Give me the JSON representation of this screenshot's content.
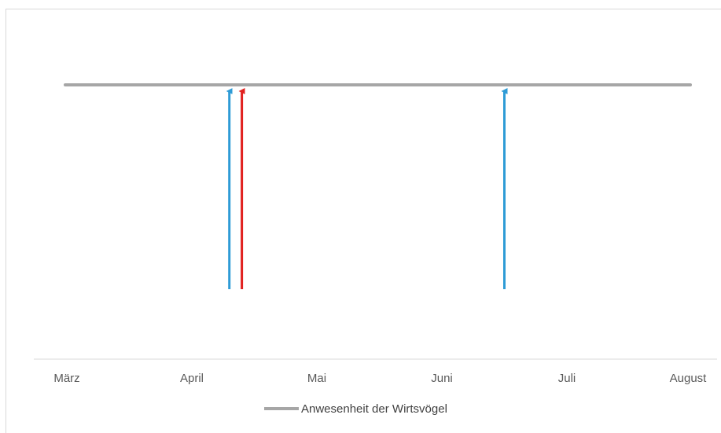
{
  "chart_data": {
    "type": "line",
    "categories": [
      "März",
      "April",
      "Mai",
      "Juni",
      "Juli",
      "August"
    ],
    "series": [
      {
        "name": "Anwesenheit der Wirtsvögel",
        "color": "#a6a6a6",
        "x": [
          "März",
          "August"
        ],
        "values": [
          1,
          1
        ]
      }
    ],
    "arrows": [
      {
        "x": 1.3,
        "color": "#2e9bd6"
      },
      {
        "x": 1.4,
        "color": "#e1211f"
      },
      {
        "x": 3.5,
        "color": "#2e9bd6"
      }
    ],
    "legend": {
      "position": "bottom",
      "entries": [
        "Anwesenheit der Wirtsvögel"
      ]
    },
    "grid": false,
    "title": "",
    "xlabel": "",
    "ylabel": ""
  }
}
